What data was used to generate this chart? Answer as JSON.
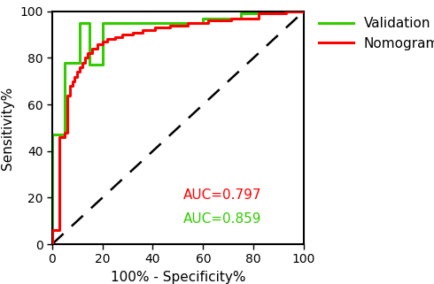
{
  "xlabel": "100% - Specificity%",
  "ylabel": "Sensitivity%",
  "xlim": [
    0,
    100
  ],
  "ylim": [
    0,
    100
  ],
  "xticks": [
    0,
    20,
    40,
    60,
    80,
    100
  ],
  "yticks": [
    0,
    20,
    40,
    60,
    80,
    100
  ],
  "nomogram_color": "#FF0000",
  "validation_color": "#33CC00",
  "nomogram_label": "Nomogram",
  "validation_label": "Validation",
  "auc_nomogram": "AUC=0.797",
  "auc_validation": "AUC=0.859",
  "auc_x": 52,
  "auc_y_nomogram": 21,
  "auc_y_validation": 11,
  "nomogram_fpr": [
    0,
    0,
    2,
    3,
    3,
    5,
    6,
    7,
    8,
    9,
    10,
    11,
    12,
    13,
    14,
    16,
    18,
    20,
    22,
    25,
    28,
    32,
    36,
    41,
    47,
    54,
    62,
    71,
    82,
    93,
    100
  ],
  "nomogram_tpr": [
    0,
    6,
    6,
    6,
    46,
    48,
    64,
    68,
    70,
    72,
    74,
    76,
    78,
    80,
    82,
    84,
    86,
    87,
    88,
    89,
    90,
    91,
    92,
    93,
    94,
    95,
    96,
    97,
    99,
    100,
    100
  ],
  "validation_fpr": [
    0,
    0,
    5,
    5,
    11,
    11,
    15,
    15,
    20,
    20,
    60,
    60,
    75,
    75,
    90,
    90,
    100
  ],
  "validation_tpr": [
    0,
    47,
    47,
    78,
    78,
    95,
    95,
    77,
    77,
    95,
    95,
    97,
    97,
    99,
    99,
    100,
    100
  ],
  "line_width": 2.2,
  "background_color": "#ffffff",
  "legend_fontsize": 11,
  "axis_fontsize": 11,
  "tick_fontsize": 10,
  "auc_fontsize": 11
}
